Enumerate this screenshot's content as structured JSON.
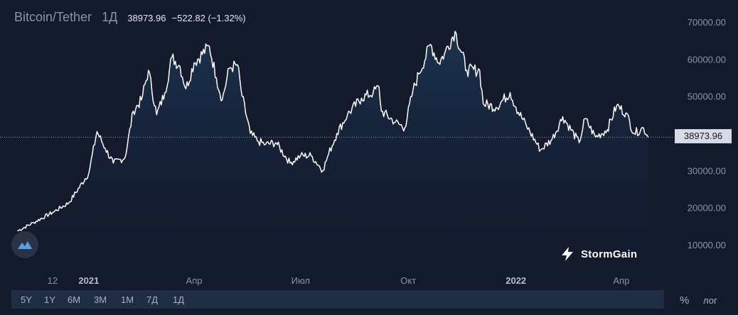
{
  "header": {
    "symbol": "Bitcoin/Tether",
    "interval": "1Д",
    "price": "38973.96",
    "change": "−522.82 (−1.32%)"
  },
  "colors": {
    "background": "#131a2c",
    "line": "#ffffff",
    "area_top": "#1c3553",
    "text": "#8c93a6",
    "toolbar": "#1e2d42"
  },
  "last_price_label": "38973.96",
  "brand": {
    "name": "StormGain"
  },
  "toolbar": {
    "ranges": [
      "5Y",
      "1Y",
      "6M",
      "3M",
      "1M",
      "7Д",
      "1Д"
    ],
    "percent": "%",
    "log": "лог"
  },
  "chart_data": {
    "type": "area",
    "title": "Bitcoin/Tether",
    "y_axis_position": "right",
    "y_ticks": [
      "70000.00",
      "60000.00",
      "50000.00",
      "40000.00",
      "30000.00",
      "20000.00",
      "10000.00"
    ],
    "x_ticks": [
      {
        "label": "12",
        "bold": false
      },
      {
        "label": "2021",
        "bold": true
      },
      {
        "label": "Апр",
        "bold": false
      },
      {
        "label": "Июл",
        "bold": false
      },
      {
        "label": "Окт",
        "bold": false
      },
      {
        "label": "2022",
        "bold": true
      },
      {
        "label": "Апр",
        "bold": false
      }
    ],
    "ylim": [
      6000,
      73000
    ],
    "last_value": 38973.96,
    "grid": false,
    "x": [
      "2020-11-01",
      "2020-11-15",
      "2020-12-01",
      "2020-12-15",
      "2021-01-01",
      "2021-01-08",
      "2021-01-15",
      "2021-01-22",
      "2021-02-01",
      "2021-02-08",
      "2021-02-15",
      "2021-02-21",
      "2021-02-28",
      "2021-03-07",
      "2021-03-13",
      "2021-03-20",
      "2021-03-25",
      "2021-04-01",
      "2021-04-14",
      "2021-04-20",
      "2021-04-25",
      "2021-05-01",
      "2021-05-08",
      "2021-05-12",
      "2021-05-19",
      "2021-05-25",
      "2021-06-01",
      "2021-06-10",
      "2021-06-22",
      "2021-07-01",
      "2021-07-10",
      "2021-07-20",
      "2021-07-25",
      "2021-08-01",
      "2021-08-10",
      "2021-08-22",
      "2021-09-01",
      "2021-09-06",
      "2021-09-08",
      "2021-09-20",
      "2021-09-28",
      "2021-10-05",
      "2021-10-10",
      "2021-10-20",
      "2021-10-27",
      "2021-11-01",
      "2021-11-10",
      "2021-11-20",
      "2021-12-01",
      "2021-12-04",
      "2021-12-15",
      "2021-12-27",
      "2022-01-01",
      "2022-01-10",
      "2022-01-22",
      "2022-02-01",
      "2022-02-10",
      "2022-02-24",
      "2022-03-01",
      "2022-03-10",
      "2022-03-20",
      "2022-03-28",
      "2022-04-05",
      "2022-04-12",
      "2022-04-20",
      "2022-04-24"
    ],
    "values": [
      13700,
      16000,
      18700,
      21300,
      29300,
      40500,
      36000,
      32000,
      33500,
      46000,
      49000,
      57000,
      45000,
      51000,
      60500,
      58000,
      52000,
      59000,
      63500,
      55000,
      49000,
      57500,
      58500,
      50000,
      40000,
      38000,
      37000,
      37500,
      32000,
      34000,
      34000,
      30000,
      34500,
      40000,
      45000,
      49500,
      51000,
      52500,
      46000,
      43000,
      41500,
      51500,
      56000,
      64000,
      59000,
      61500,
      67500,
      57000,
      57000,
      48000,
      47000,
      51000,
      47000,
      42000,
      35500,
      38500,
      44500,
      37500,
      44000,
      39000,
      41000,
      47500,
      45500,
      40000,
      41500,
      38974
    ]
  }
}
